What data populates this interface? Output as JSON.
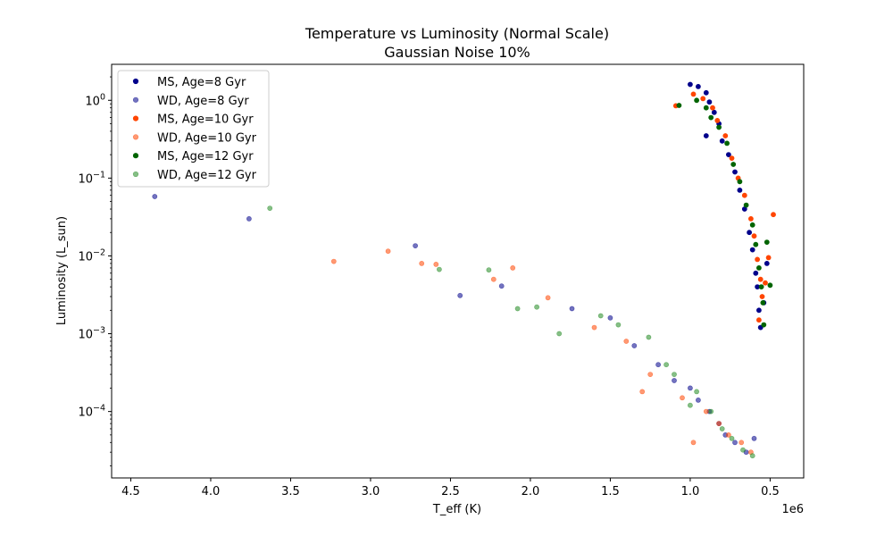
{
  "chart_data": {
    "type": "scatter",
    "title": "Temperature vs Luminosity (Normal Scale)",
    "subtitle": "Gaussian Noise 10%",
    "xlabel": "T_eff (K)",
    "ylabel": "Luminosity (L_sun)",
    "x_offset_label": "1e6",
    "x_axis_inverted": true,
    "xlim": [
      4620000,
      290000
    ],
    "x_ticks": [
      4500000,
      4000000,
      3500000,
      3000000,
      2500000,
      2000000,
      1500000,
      1000000,
      500000
    ],
    "x_tick_labels": [
      "4.5",
      "4.0",
      "3.5",
      "3.0",
      "2.5",
      "2.0",
      "1.5",
      "1.0",
      "0.5"
    ],
    "y_scale": "log",
    "ylim": [
      1.4e-05,
      2.9
    ],
    "y_ticks": [
      0.0001,
      0.001,
      0.01,
      0.1,
      1
    ],
    "y_tick_labels": [
      {
        "base": "10",
        "exp": "−4"
      },
      {
        "base": "10",
        "exp": "−3"
      },
      {
        "base": "10",
        "exp": "−2"
      },
      {
        "base": "10",
        "exp": "−1"
      },
      {
        "base": "10",
        "exp": "0"
      }
    ],
    "grid": false,
    "legend_position": "top-left",
    "series": [
      {
        "name": "MS, Age=8 Gyr",
        "color": "#00008b",
        "alpha": 1.0,
        "kind": "ms",
        "points": [
          [
            1000000,
            1.6
          ],
          [
            950000,
            1.5
          ],
          [
            900000,
            1.25
          ],
          [
            880000,
            0.95
          ],
          [
            850000,
            0.7
          ],
          [
            820000,
            0.5
          ],
          [
            800000,
            0.3
          ],
          [
            760000,
            0.2
          ],
          [
            720000,
            0.12
          ],
          [
            690000,
            0.07
          ],
          [
            660000,
            0.04
          ],
          [
            630000,
            0.02
          ],
          [
            610000,
            0.012
          ],
          [
            590000,
            0.006
          ],
          [
            580000,
            0.004
          ],
          [
            570000,
            0.002
          ],
          [
            560000,
            0.0012
          ],
          [
            520000,
            0.008
          ],
          [
            540000,
            0.0025
          ],
          [
            900000,
            0.35
          ]
        ]
      },
      {
        "name": "WD, Age=8 Gyr",
        "color": "#00008b",
        "alpha": 0.55,
        "kind": "wd",
        "points": [
          [
            4350000,
            0.058
          ],
          [
            3760000,
            0.03
          ],
          [
            2720000,
            0.0135
          ],
          [
            2440000,
            0.0031
          ],
          [
            2180000,
            0.0041
          ],
          [
            1740000,
            0.0021
          ],
          [
            1500000,
            0.0016
          ],
          [
            1350000,
            0.0007
          ],
          [
            1100000,
            0.00025
          ],
          [
            950000,
            0.00014
          ],
          [
            880000,
            0.0001
          ],
          [
            820000,
            7e-05
          ],
          [
            780000,
            5e-05
          ],
          [
            720000,
            4e-05
          ],
          [
            650000,
            3e-05
          ],
          [
            600000,
            4.5e-05
          ],
          [
            1200000,
            0.0004
          ],
          [
            1000000,
            0.0002
          ]
        ]
      },
      {
        "name": "MS, Age=10 Gyr",
        "color": "#ff4500",
        "alpha": 1.0,
        "kind": "ms",
        "points": [
          [
            1090000,
            0.85
          ],
          [
            980000,
            1.2
          ],
          [
            920000,
            1.05
          ],
          [
            860000,
            0.8
          ],
          [
            830000,
            0.55
          ],
          [
            780000,
            0.35
          ],
          [
            740000,
            0.18
          ],
          [
            700000,
            0.1
          ],
          [
            660000,
            0.06
          ],
          [
            620000,
            0.03
          ],
          [
            600000,
            0.018
          ],
          [
            580000,
            0.009
          ],
          [
            560000,
            0.005
          ],
          [
            550000,
            0.003
          ],
          [
            570000,
            0.0015
          ],
          [
            480000,
            0.034
          ],
          [
            510000,
            0.0095
          ],
          [
            530000,
            0.0045
          ]
        ]
      },
      {
        "name": "WD, Age=10 Gyr",
        "color": "#ff4500",
        "alpha": 0.55,
        "kind": "wd",
        "points": [
          [
            3230000,
            0.0085
          ],
          [
            2890000,
            0.0115
          ],
          [
            2680000,
            0.008
          ],
          [
            2590000,
            0.0078
          ],
          [
            2230000,
            0.005
          ],
          [
            2110000,
            0.007
          ],
          [
            1890000,
            0.0029
          ],
          [
            1600000,
            0.0012
          ],
          [
            1400000,
            0.0008
          ],
          [
            1250000,
            0.0003
          ],
          [
            1050000,
            0.00015
          ],
          [
            900000,
            0.0001
          ],
          [
            820000,
            7e-05
          ],
          [
            760000,
            5e-05
          ],
          [
            680000,
            4e-05
          ],
          [
            620000,
            3e-05
          ],
          [
            980000,
            4e-05
          ],
          [
            1300000,
            0.00018
          ]
        ]
      },
      {
        "name": "MS, Age=12 Gyr",
        "color": "#006400",
        "alpha": 1.0,
        "kind": "ms",
        "points": [
          [
            1070000,
            0.86
          ],
          [
            960000,
            1.0
          ],
          [
            900000,
            0.8
          ],
          [
            870000,
            0.6
          ],
          [
            820000,
            0.45
          ],
          [
            770000,
            0.28
          ],
          [
            730000,
            0.15
          ],
          [
            690000,
            0.09
          ],
          [
            650000,
            0.045
          ],
          [
            610000,
            0.025
          ],
          [
            590000,
            0.014
          ],
          [
            570000,
            0.007
          ],
          [
            555000,
            0.004
          ],
          [
            545000,
            0.0025
          ],
          [
            540000,
            0.0013
          ],
          [
            500000,
            0.0042
          ],
          [
            520000,
            0.015
          ]
        ]
      },
      {
        "name": "WD, Age=12 Gyr",
        "color": "#228b22",
        "alpha": 0.55,
        "kind": "wd",
        "points": [
          [
            3630000,
            0.041
          ],
          [
            2570000,
            0.0067
          ],
          [
            2260000,
            0.0066
          ],
          [
            2080000,
            0.0021
          ],
          [
            1960000,
            0.0022
          ],
          [
            1820000,
            0.001
          ],
          [
            1560000,
            0.0017
          ],
          [
            1450000,
            0.0013
          ],
          [
            1260000,
            0.0009
          ],
          [
            1100000,
            0.0003
          ],
          [
            960000,
            0.00018
          ],
          [
            870000,
            0.0001
          ],
          [
            800000,
            6e-05
          ],
          [
            740000,
            4.5e-05
          ],
          [
            670000,
            3.2e-05
          ],
          [
            610000,
            2.7e-05
          ],
          [
            1150000,
            0.0004
          ],
          [
            1000000,
            0.00012
          ]
        ]
      }
    ]
  }
}
